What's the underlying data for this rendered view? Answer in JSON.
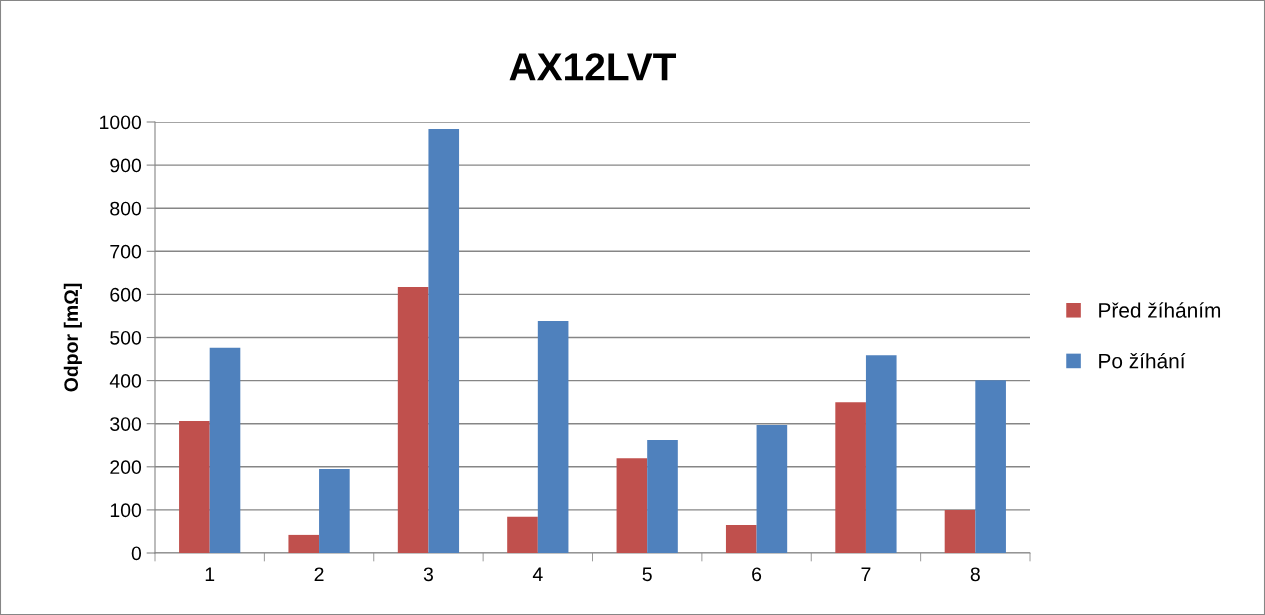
{
  "chart_data": {
    "type": "bar",
    "title": "AX12LVT",
    "ylabel": "Odpor [mΩ]",
    "categories": [
      "1",
      "2",
      "3",
      "4",
      "5",
      "6",
      "7",
      "8"
    ],
    "series": [
      {
        "name": "Před žíháním",
        "color": "#c0504d",
        "values": [
          306,
          42,
          617,
          84,
          220,
          65,
          350,
          100
        ]
      },
      {
        "name": "Po žíhání",
        "color": "#4f81bd",
        "values": [
          476,
          195,
          984,
          538,
          262,
          297,
          459,
          401
        ]
      }
    ],
    "ylim": [
      0,
      1000
    ],
    "yticks": [
      0,
      100,
      200,
      300,
      400,
      500,
      600,
      700,
      800,
      900,
      1000
    ],
    "grid": "y",
    "legend": "right"
  }
}
